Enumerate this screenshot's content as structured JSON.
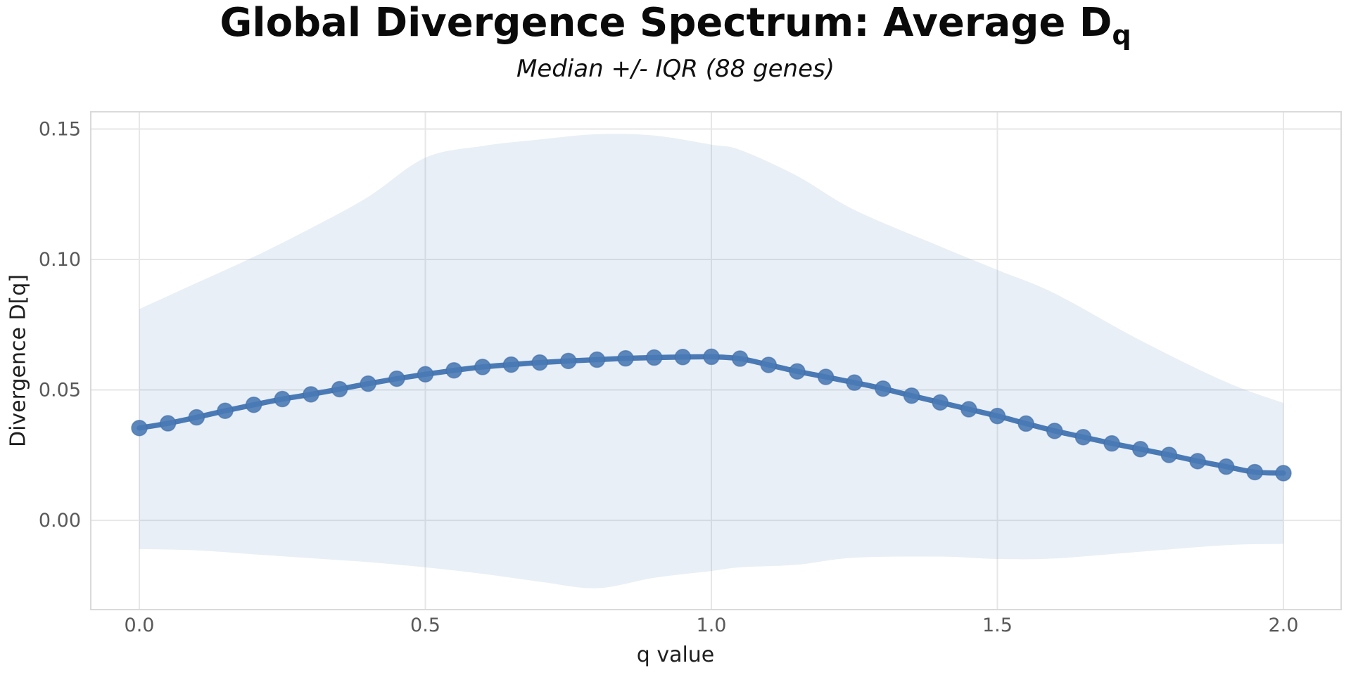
{
  "header": {
    "title_main": "Global Divergence Spectrum: Average D",
    "title_subscript": "q",
    "subtitle": "Median +/- IQR (88 genes)"
  },
  "chart_data": {
    "type": "line",
    "title": "Global Divergence Spectrum: Average D_q",
    "subtitle": "Median +/- IQR (88 genes)",
    "xlabel": "q value",
    "ylabel": "Divergence D[q]",
    "grid": true,
    "legend": "none",
    "xlim": [
      -0.0849,
      2.1009
    ],
    "ylim": [
      -0.0342,
      0.1566
    ],
    "x_ticks": [
      0.0,
      0.5,
      1.0,
      1.5,
      2.0
    ],
    "x_tick_labels": [
      "0.0",
      "0.5",
      "1.0",
      "1.5",
      "2.0"
    ],
    "y_ticks": [
      0.0,
      0.05,
      0.1,
      0.15
    ],
    "y_tick_labels": [
      "0.00",
      "0.05",
      "0.10",
      "0.15"
    ],
    "series": [
      {
        "name": "median_Dq",
        "type": "line+markers",
        "x": [
          0.0,
          0.05,
          0.1,
          0.15,
          0.2,
          0.25,
          0.3,
          0.35,
          0.4,
          0.45,
          0.5,
          0.55,
          0.6,
          0.65,
          0.7,
          0.75,
          0.8,
          0.85,
          0.9,
          0.95,
          1.0,
          1.05,
          1.1,
          1.15,
          1.2,
          1.25,
          1.3,
          1.35,
          1.4,
          1.45,
          1.5,
          1.55,
          1.6,
          1.65,
          1.7,
          1.75,
          1.8,
          1.85,
          1.9,
          1.95,
          2.0
        ],
        "y": [
          0.0354,
          0.0372,
          0.0395,
          0.042,
          0.0443,
          0.0465,
          0.0483,
          0.0503,
          0.0524,
          0.0543,
          0.056,
          0.0575,
          0.0588,
          0.0597,
          0.0605,
          0.0611,
          0.0616,
          0.0621,
          0.0624,
          0.0626,
          0.0627,
          0.062,
          0.0596,
          0.0571,
          0.055,
          0.0528,
          0.0505,
          0.0478,
          0.0452,
          0.0426,
          0.04,
          0.0371,
          0.0343,
          0.0319,
          0.0295,
          0.0273,
          0.0251,
          0.0227,
          0.0206,
          0.0185,
          0.0181
        ]
      },
      {
        "name": "iqr_band",
        "type": "band",
        "x": [
          0.0,
          0.1,
          0.2,
          0.3,
          0.4,
          0.5,
          0.6,
          0.7,
          0.8,
          0.9,
          1.0,
          1.05,
          1.15,
          1.25,
          1.4,
          1.5,
          1.6,
          1.75,
          1.9,
          2.0
        ],
        "upper": [
          0.081,
          0.091,
          0.101,
          0.112,
          0.124,
          0.139,
          0.1435,
          0.146,
          0.148,
          0.1475,
          0.144,
          0.142,
          0.132,
          0.119,
          0.105,
          0.096,
          0.087,
          0.069,
          0.053,
          0.045
        ],
        "lower": [
          -0.011,
          -0.0115,
          -0.013,
          -0.0145,
          -0.016,
          -0.018,
          -0.0205,
          -0.0235,
          -0.026,
          -0.022,
          -0.0194,
          -0.018,
          -0.017,
          -0.0143,
          -0.0139,
          -0.0148,
          -0.0146,
          -0.012,
          -0.0095,
          -0.009
        ]
      }
    ],
    "colors": {
      "line": "#4a7ab5",
      "marker": "#4a7ab5",
      "marker_edge": "#3d6ba6",
      "band_fill": "#4a7ab5",
      "band_opacity": 0.12,
      "grid": "#e7e7e7",
      "spine": "#dadada",
      "tick_label": "#595959",
      "background": "#ffffff"
    }
  }
}
